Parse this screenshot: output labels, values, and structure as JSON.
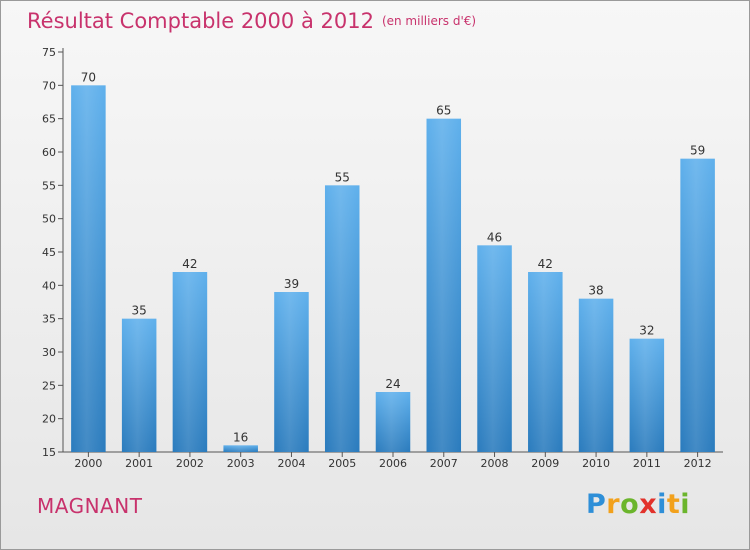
{
  "header": {
    "title": "Résultat Comptable 2000 à 2012",
    "subtitle": "(en milliers d'€)"
  },
  "footer": {
    "commune": "MAGNANT",
    "logo_letters": [
      "P",
      "r",
      "o",
      "x",
      "i",
      "t",
      "i"
    ],
    "logo_colors": [
      "#2e8fd8",
      "#f2a11c",
      "#6bb52c",
      "#e2322b",
      "#2e8fd8",
      "#f2a11c",
      "#6bb52c"
    ]
  },
  "chart_data": {
    "type": "bar",
    "title": "Résultat Comptable 2000 à 2012",
    "subtitle": "(en milliers d'€)",
    "xlabel": "",
    "ylabel": "",
    "categories": [
      "2000",
      "2001",
      "2002",
      "2003",
      "2004",
      "2005",
      "2006",
      "2007",
      "2008",
      "2009",
      "2010",
      "2011",
      "2012"
    ],
    "values": [
      70,
      35,
      42,
      16,
      39,
      55,
      24,
      65,
      46,
      42,
      38,
      32,
      59
    ],
    "ylim": [
      15,
      75
    ],
    "yticks": [
      15,
      20,
      25,
      30,
      35,
      40,
      45,
      50,
      55,
      60,
      65,
      70,
      75
    ],
    "grid": false,
    "bar_color_top": "#5fb0ec",
    "bar_color_bottom": "#2a7bbd"
  }
}
